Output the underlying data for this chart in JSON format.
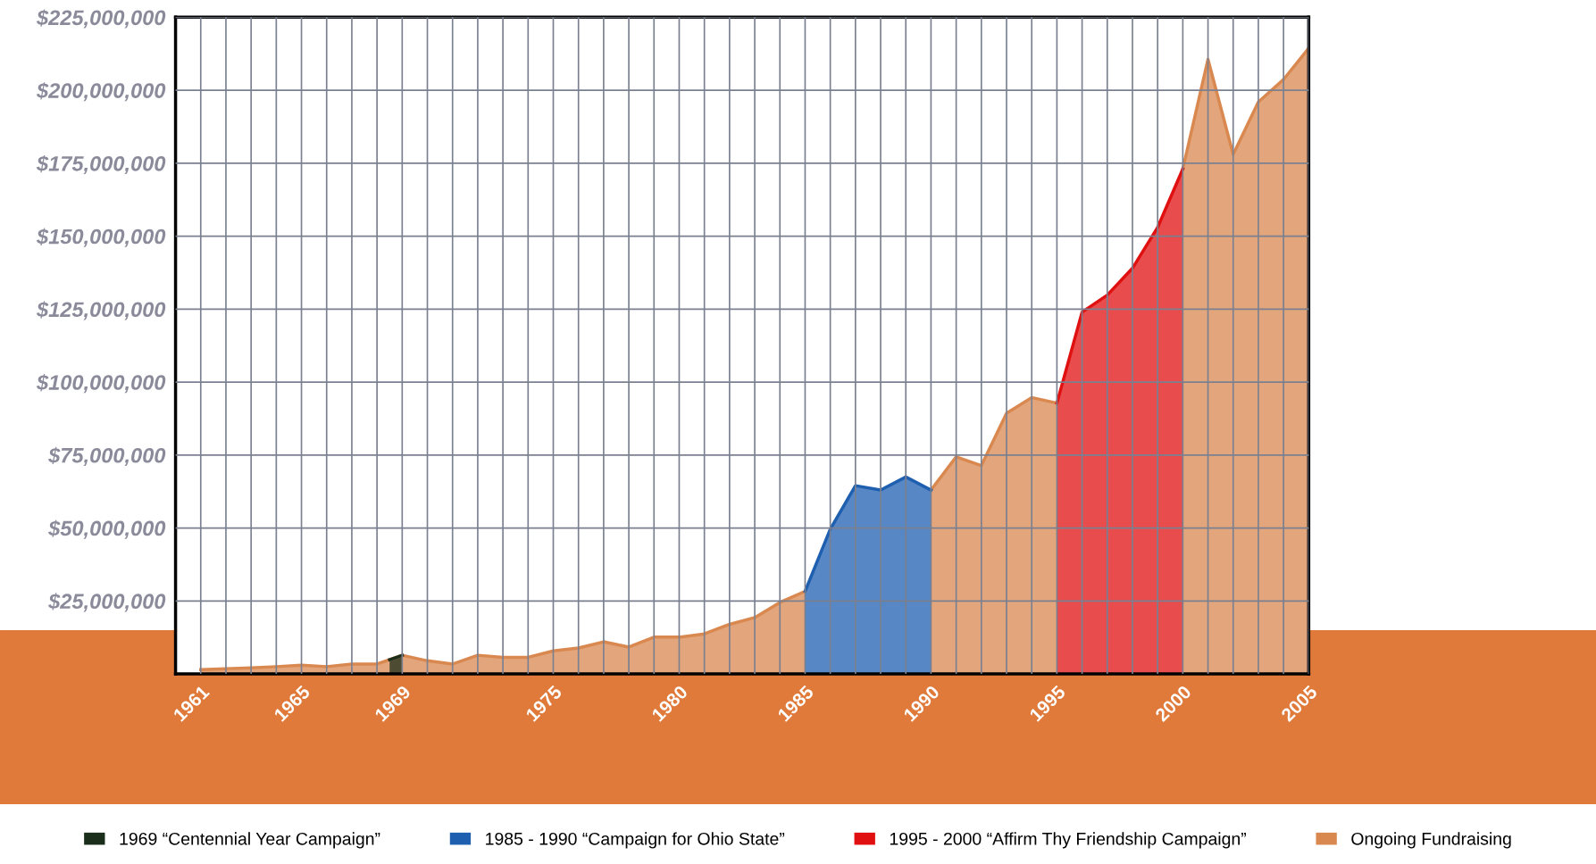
{
  "chart_data": {
    "type": "area",
    "x": [
      1961,
      1962,
      1963,
      1964,
      1965,
      1966,
      1967,
      1968,
      1969,
      1970,
      1971,
      1972,
      1973,
      1974,
      1975,
      1976,
      1977,
      1978,
      1979,
      1980,
      1981,
      1982,
      1983,
      1984,
      1985,
      1986,
      1987,
      1988,
      1989,
      1990,
      1991,
      1992,
      1993,
      1994,
      1995,
      1996,
      1997,
      1998,
      1999,
      2000,
      2001,
      2002,
      2003,
      2004,
      2005
    ],
    "series": [
      {
        "name": "1969 “Centennial Year Campaign”",
        "color": "#1b2e1b",
        "x": [
          1968.5,
          1969
        ],
        "values": [
          4900000,
          6400000
        ]
      },
      {
        "name": "1985 - 1990 “Campaign for Ohio State”",
        "color": "#1f5fb0",
        "x": [
          1985,
          1986,
          1987,
          1988,
          1989,
          1990
        ],
        "values": [
          28300000,
          49600000,
          64500000,
          63000000,
          67500000,
          63000000
        ]
      },
      {
        "name": "1995 - 2000 “Affirm Thy Friendship Campaign”",
        "color": "#e01010",
        "x": [
          1995,
          1996,
          1997,
          1998,
          1999,
          2000
        ],
        "values": [
          92800000,
          124000000,
          129800000,
          139000000,
          153000000,
          173000000
        ]
      },
      {
        "name": "Ongoing Fundraising",
        "color": "#d98850",
        "values": [
          1500000,
          1800000,
          2100000,
          2500000,
          3000000,
          2500000,
          3400000,
          3400000,
          6400000,
          4500000,
          3400000,
          6400000,
          5700000,
          5700000,
          7900000,
          8900000,
          11000000,
          9200000,
          12600000,
          12600000,
          13700000,
          17000000,
          19300000,
          24500000,
          28300000,
          null,
          null,
          null,
          null,
          63000000,
          74400000,
          71400000,
          89300000,
          94700000,
          92800000,
          null,
          null,
          null,
          null,
          173000000,
          210600000,
          178000000,
          196000000,
          203700000,
          214400000
        ]
      }
    ],
    "xlim": [
      1960,
      2005
    ],
    "xticks": [
      {
        "value": 1961,
        "label": "1961"
      },
      {
        "value": 1962,
        "label": null
      },
      {
        "value": 1963,
        "label": null
      },
      {
        "value": 1964,
        "label": null
      },
      {
        "value": 1965,
        "label": "1965"
      },
      {
        "value": 1966,
        "label": null
      },
      {
        "value": 1967,
        "label": null
      },
      {
        "value": 1968,
        "label": null
      },
      {
        "value": 1969,
        "label": "1969"
      },
      {
        "value": 1970,
        "label": null
      },
      {
        "value": 1971,
        "label": null
      },
      {
        "value": 1972,
        "label": null
      },
      {
        "value": 1973,
        "label": null
      },
      {
        "value": 1974,
        "label": null
      },
      {
        "value": 1975,
        "label": "1975"
      },
      {
        "value": 1976,
        "label": null
      },
      {
        "value": 1977,
        "label": null
      },
      {
        "value": 1978,
        "label": null
      },
      {
        "value": 1979,
        "label": null
      },
      {
        "value": 1980,
        "label": "1980"
      },
      {
        "value": 1981,
        "label": null
      },
      {
        "value": 1982,
        "label": null
      },
      {
        "value": 1983,
        "label": null
      },
      {
        "value": 1984,
        "label": null
      },
      {
        "value": 1985,
        "label": "1985"
      },
      {
        "value": 1986,
        "label": null
      },
      {
        "value": 1987,
        "label": null
      },
      {
        "value": 1988,
        "label": null
      },
      {
        "value": 1989,
        "label": null
      },
      {
        "value": 1990,
        "label": "1990"
      },
      {
        "value": 1991,
        "label": null
      },
      {
        "value": 1992,
        "label": null
      },
      {
        "value": 1993,
        "label": null
      },
      {
        "value": 1994,
        "label": null
      },
      {
        "value": 1995,
        "label": "1995"
      },
      {
        "value": 1996,
        "label": null
      },
      {
        "value": 1997,
        "label": null
      },
      {
        "value": 1998,
        "label": null
      },
      {
        "value": 1999,
        "label": null
      },
      {
        "value": 2000,
        "label": "2000"
      },
      {
        "value": 2001,
        "label": null
      },
      {
        "value": 2002,
        "label": null
      },
      {
        "value": 2003,
        "label": null
      },
      {
        "value": 2004,
        "label": null
      },
      {
        "value": 2005,
        "label": "2005"
      }
    ],
    "ylim": [
      0,
      225000000
    ],
    "yticks": [
      {
        "value": 25000000,
        "label": "$25,000,000"
      },
      {
        "value": 50000000,
        "label": "$50,000,000"
      },
      {
        "value": 75000000,
        "label": "$75,000,000"
      },
      {
        "value": 100000000,
        "label": "$100,000,000"
      },
      {
        "value": 125000000,
        "label": "$125,000,000"
      },
      {
        "value": 150000000,
        "label": "$150,000,000"
      },
      {
        "value": 175000000,
        "label": "$175,000,000"
      },
      {
        "value": 200000000,
        "label": "$200,000,000"
      },
      {
        "value": 225000000,
        "label": "$225,000,000"
      }
    ],
    "grid": true,
    "legend": "bottom"
  }
}
